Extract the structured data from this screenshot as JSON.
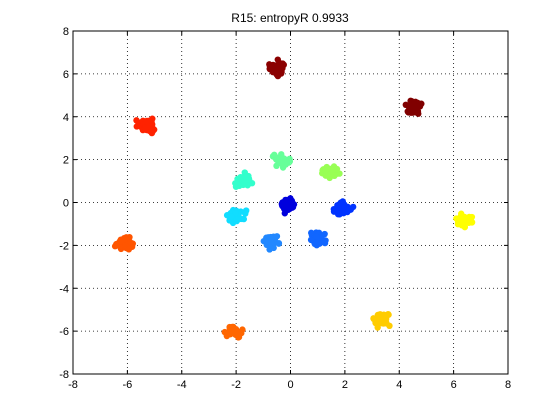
{
  "chart_data": {
    "type": "scatter",
    "title": "R15: entropyR  0.9933",
    "xlabel": "",
    "ylabel": "",
    "xlim": [
      -8,
      8
    ],
    "ylim": [
      -8,
      8
    ],
    "xticks": [
      "-8",
      "-6",
      "-4",
      "-2",
      "0",
      "2",
      "4",
      "6",
      "8"
    ],
    "yticks": [
      "-8",
      "-6",
      "-4",
      "-2",
      "0",
      "2",
      "4",
      "6",
      "8"
    ],
    "grid": true,
    "legend": "none",
    "clusters": [
      {
        "cx": -0.5,
        "cy": 6.3,
        "color": "#8b0000"
      },
      {
        "cx": 4.6,
        "cy": 4.4,
        "color": "#800000"
      },
      {
        "cx": -5.3,
        "cy": 3.6,
        "color": "#ff2200"
      },
      {
        "cx": -1.7,
        "cy": 1.0,
        "color": "#33ffcc"
      },
      {
        "cx": -0.3,
        "cy": 2.0,
        "color": "#66ff99"
      },
      {
        "cx": 1.5,
        "cy": 1.4,
        "color": "#99ff55"
      },
      {
        "cx": -2.0,
        "cy": -0.6,
        "color": "#11ddff"
      },
      {
        "cx": -0.1,
        "cy": -0.1,
        "color": "#0000dd"
      },
      {
        "cx": 1.9,
        "cy": -0.3,
        "color": "#0033ff"
      },
      {
        "cx": -0.7,
        "cy": -1.8,
        "color": "#2288ff"
      },
      {
        "cx": 1.0,
        "cy": -1.7,
        "color": "#1166ff"
      },
      {
        "cx": 6.4,
        "cy": -0.9,
        "color": "#ffff00"
      },
      {
        "cx": -6.1,
        "cy": -1.9,
        "color": "#ff5500"
      },
      {
        "cx": -2.1,
        "cy": -6.0,
        "color": "#ff6600"
      },
      {
        "cx": 3.3,
        "cy": -5.5,
        "color": "#ffcc00"
      }
    ]
  }
}
